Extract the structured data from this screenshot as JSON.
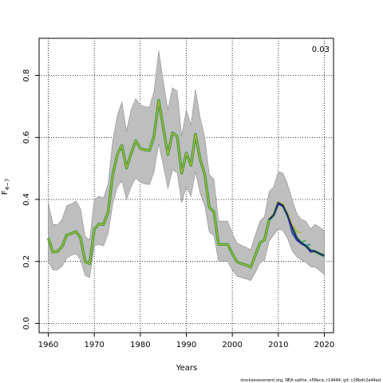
{
  "chart_data": {
    "type": "line",
    "xlabel": "Years",
    "ylabel_main": "F",
    "ylabel_sub": "4−7",
    "corner_label": "0.03",
    "footer": "stockassessment.org, NEA saithe, v5Reca, r14444, git: c28bdc2a44ad",
    "xlim": [
      1958,
      2022
    ],
    "ylim": [
      -0.03,
      0.92
    ],
    "x_ticks": [
      1960,
      1970,
      1980,
      1990,
      2000,
      2010,
      2020
    ],
    "y_ticks": [
      0.0,
      0.2,
      0.4,
      0.6,
      0.8
    ],
    "grid": true,
    "colors": {
      "band": "#bebebe",
      "band_edge": "#8c8c8c",
      "main_outer": "#2e9e3e",
      "main_inner": "#b8b23a"
    },
    "main_series": {
      "name": "",
      "x": [
        1960,
        1961,
        1962,
        1963,
        1964,
        1965,
        1966,
        1967,
        1968,
        1969,
        1970,
        1971,
        1972,
        1973,
        1974,
        1975,
        1976,
        1977,
        1978,
        1979,
        1980,
        1981,
        1982,
        1983,
        1984,
        1985,
        1986,
        1987,
        1988,
        1989,
        1990,
        1991,
        1992,
        1993,
        1994,
        1995,
        1996,
        1997,
        1998,
        1999,
        2000,
        2001,
        2002,
        2003,
        2004,
        2005,
        2006,
        2007,
        2008,
        2009,
        2010,
        2011,
        2012,
        2013,
        2014,
        2015,
        2016,
        2017,
        2018,
        2019,
        2020
      ],
      "y": [
        0.275,
        0.23,
        0.232,
        0.248,
        0.285,
        0.29,
        0.297,
        0.276,
        0.2,
        0.193,
        0.304,
        0.321,
        0.319,
        0.36,
        0.48,
        0.545,
        0.575,
        0.501,
        0.548,
        0.59,
        0.565,
        0.56,
        0.558,
        0.605,
        0.72,
        0.63,
        0.545,
        0.615,
        0.604,
        0.485,
        0.55,
        0.51,
        0.61,
        0.53,
        0.48,
        0.375,
        0.36,
        0.255,
        0.255,
        0.255,
        0.225,
        0.199,
        0.193,
        0.188,
        0.182,
        0.22,
        0.26,
        0.27,
        0.335,
        0.35,
        0.39,
        0.38,
        0.35,
        0.31,
        0.275,
        0.26,
        0.25,
        0.235,
        0.232,
        0.225,
        0.218
      ],
      "lower": [
        0.2,
        0.172,
        0.173,
        0.185,
        0.21,
        0.22,
        0.225,
        0.205,
        0.155,
        0.148,
        0.25,
        0.255,
        0.25,
        0.29,
        0.385,
        0.44,
        0.46,
        0.4,
        0.44,
        0.47,
        0.455,
        0.45,
        0.448,
        0.49,
        0.58,
        0.51,
        0.435,
        0.495,
        0.487,
        0.39,
        0.44,
        0.41,
        0.49,
        0.42,
        0.38,
        0.295,
        0.283,
        0.2,
        0.2,
        0.2,
        0.172,
        0.152,
        0.148,
        0.144,
        0.138,
        0.165,
        0.195,
        0.205,
        0.265,
        0.285,
        0.305,
        0.3,
        0.275,
        0.235,
        0.215,
        0.205,
        0.197,
        0.183,
        0.182,
        0.17,
        0.158
      ],
      "upper": [
        0.39,
        0.32,
        0.318,
        0.336,
        0.38,
        0.385,
        0.395,
        0.37,
        0.28,
        0.27,
        0.4,
        0.41,
        0.405,
        0.45,
        0.59,
        0.67,
        0.715,
        0.62,
        0.69,
        0.725,
        0.705,
        0.7,
        0.698,
        0.75,
        0.88,
        0.78,
        0.69,
        0.76,
        0.75,
        0.605,
        0.69,
        0.64,
        0.755,
        0.665,
        0.6,
        0.48,
        0.465,
        0.33,
        0.33,
        0.33,
        0.29,
        0.26,
        0.252,
        0.245,
        0.238,
        0.285,
        0.33,
        0.345,
        0.425,
        0.44,
        0.49,
        0.485,
        0.45,
        0.4,
        0.355,
        0.335,
        0.33,
        0.305,
        0.32,
        0.31,
        0.3
      ]
    },
    "retro_series": [
      {
        "color": "#b8b23a",
        "x": [
          2008,
          2009,
          2010,
          2011,
          2012,
          2013,
          2014,
          2015
        ],
        "y": [
          0.338,
          0.355,
          0.392,
          0.386,
          0.355,
          0.32,
          0.296,
          0.292
        ]
      },
      {
        "color": "#3aa84a",
        "x": [
          2008,
          2009,
          2010,
          2011,
          2012,
          2013,
          2014,
          2015,
          2016
        ],
        "y": [
          0.336,
          0.352,
          0.388,
          0.382,
          0.352,
          0.3,
          0.278,
          0.262,
          0.268
        ]
      },
      {
        "color": "#2e8b8b",
        "x": [
          2008,
          2009,
          2010,
          2011,
          2012,
          2013,
          2014,
          2015,
          2016,
          2017
        ],
        "y": [
          0.335,
          0.35,
          0.385,
          0.379,
          0.35,
          0.295,
          0.27,
          0.258,
          0.252,
          0.255
        ]
      },
      {
        "color": "#3a3aa8",
        "x": [
          2008,
          2009,
          2010,
          2011,
          2012,
          2013,
          2014,
          2015,
          2016,
          2017,
          2018
        ],
        "y": [
          0.335,
          0.35,
          0.384,
          0.378,
          0.349,
          0.292,
          0.268,
          0.257,
          0.25,
          0.23,
          0.236
        ]
      },
      {
        "color": "#1e1e6e",
        "x": [
          2008,
          2009,
          2010,
          2011,
          2012,
          2013,
          2014,
          2015,
          2016,
          2017,
          2018,
          2019,
          2020
        ],
        "y": [
          0.335,
          0.35,
          0.39,
          0.38,
          0.35,
          0.31,
          0.275,
          0.26,
          0.25,
          0.235,
          0.232,
          0.225,
          0.218
        ]
      }
    ]
  }
}
